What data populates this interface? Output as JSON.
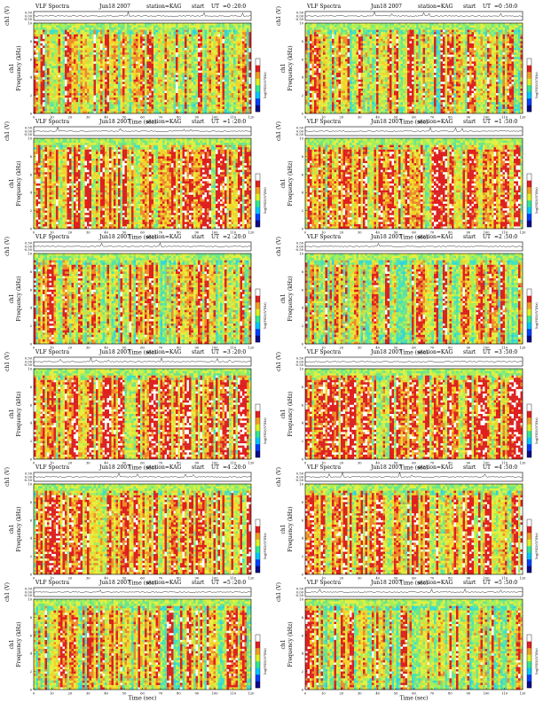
{
  "header_labels": {
    "title": "VLF Spectra",
    "station": "station=KAG",
    "start": "start",
    "ut": "UT"
  },
  "axis_labels": {
    "xlabel": "Time (sec)",
    "ylabel_amp": "ch1 (V)",
    "ylabel_spec_line1": "ch1",
    "ylabel_spec_line2": "Frequency (kHz)",
    "colorbar_label": "log(PSD)(V²/Hz)"
  },
  "x_ticks": [
    "0",
    "10",
    "20",
    "30",
    "40",
    "50",
    "60",
    "70",
    "80",
    "90",
    "100",
    "110",
    "120"
  ],
  "freq_ticks": [
    "0",
    "2",
    "4",
    "6",
    "8",
    "10"
  ],
  "amp_ticks": [
    "0.50",
    "0.00",
    "-0.50"
  ],
  "colors": {
    "spec": [
      "#2dd1e6",
      "#3fe0c8",
      "#6ee68a",
      "#a9f05a",
      "#e6f040",
      "#f5d42a",
      "#f08a2a",
      "#e02020",
      "#ffffff"
    ],
    "colorbar": [
      "#0a0a8a",
      "#0040ff",
      "#00c8ff",
      "#30e890",
      "#e0f020",
      "#f0a020",
      "#e02020",
      "#ffffff"
    ]
  },
  "chart_data": [
    {
      "type": "heatmap",
      "date": "Jun18 2007",
      "time": "=0 :20:0",
      "variant": "light"
    },
    {
      "type": "heatmap",
      "date": "Jun18 2007",
      "time": "=0 :50:0",
      "variant": "light"
    },
    {
      "type": "heatmap",
      "date": "Jun18 2007",
      "time": "=1 :20:0",
      "variant": "busy"
    },
    {
      "type": "heatmap",
      "date": "Jun18 2007",
      "time": "=1 :50:0",
      "variant": "busy"
    },
    {
      "type": "heatmap",
      "date": "Jun18 2007",
      "time": "=2 :20:0",
      "variant": "light"
    },
    {
      "type": "heatmap",
      "date": "Jun18 2007",
      "time": "=2 :50:0",
      "variant": "light"
    },
    {
      "type": "heatmap",
      "date": "Jun18 2007",
      "time": "=3 :20:0",
      "variant": "busy"
    },
    {
      "type": "heatmap",
      "date": "Jun18 2007",
      "time": "=3 :50:0",
      "variant": "busy"
    },
    {
      "type": "heatmap",
      "date": "Jun18 2007",
      "time": "=4 :20:0",
      "variant": "busy"
    },
    {
      "type": "heatmap",
      "date": "Jun18 2007",
      "time": "=4 :50:0",
      "variant": "busy"
    },
    {
      "type": "heatmap",
      "date": "Jun18 2007",
      "time": "=5 :20:0",
      "variant": "light"
    },
    {
      "type": "heatmap",
      "date": "Jun18 2007",
      "time": "=5 :50:0",
      "variant": "light"
    }
  ]
}
